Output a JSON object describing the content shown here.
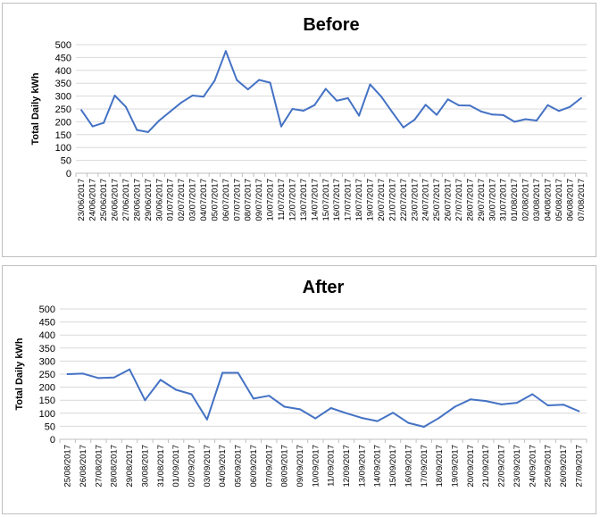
{
  "line_color": "#4472C4",
  "grid_color": "#d9d9d9",
  "chart_data": [
    {
      "type": "line",
      "title": "Before",
      "ylabel": "Total Daily kWh",
      "ylim": [
        0,
        500
      ],
      "yticks": [
        0,
        50,
        100,
        150,
        200,
        250,
        300,
        350,
        400,
        450,
        500
      ],
      "grid": true,
      "x": [
        "23/06/2017",
        "24/06/2017",
        "25/06/2017",
        "26/06/2017",
        "27/06/2017",
        "28/06/2017",
        "29/06/2017",
        "30/06/2017",
        "01/07/2017",
        "02/07/2017",
        "03/07/2017",
        "04/07/2017",
        "05/07/2017",
        "06/07/2017",
        "07/07/2017",
        "08/07/2017",
        "09/07/2017",
        "10/07/2017",
        "11/07/2017",
        "12/07/2017",
        "13/07/2017",
        "14/07/2017",
        "15/07/2017",
        "16/07/2017",
        "17/07/2017",
        "18/07/2017",
        "19/07/2017",
        "20/07/2017",
        "21/07/2017",
        "22/07/2017",
        "23/07/2017",
        "24/07/2017",
        "25/07/2017",
        "26/07/2017",
        "27/07/2017",
        "28/07/2017",
        "29/07/2017",
        "30/07/2017",
        "31/07/2017",
        "01/08/2017",
        "02/08/2017",
        "03/08/2017",
        "04/08/2017",
        "05/08/2017",
        "06/08/2017",
        "07/08/2017"
      ],
      "values": [
        245,
        182,
        196,
        302,
        258,
        168,
        160,
        205,
        240,
        275,
        302,
        298,
        360,
        475,
        362,
        326,
        363,
        352,
        182,
        250,
        243,
        265,
        328,
        282,
        292,
        224,
        345,
        298,
        237,
        178,
        208,
        266,
        227,
        287,
        264,
        263,
        240,
        228,
        226,
        200,
        210,
        205,
        265,
        242,
        258,
        292
      ]
    },
    {
      "type": "line",
      "title": "After",
      "ylabel": "Total Daily kWh",
      "ylim": [
        0,
        500
      ],
      "yticks": [
        0,
        50,
        100,
        150,
        200,
        250,
        300,
        350,
        400,
        450,
        500
      ],
      "grid": true,
      "x": [
        "25/08/2017",
        "26/08/2017",
        "27/08/2017",
        "28/08/2017",
        "29/08/2017",
        "30/08/2017",
        "31/08/2017",
        "01/09/2017",
        "02/09/2017",
        "03/09/2017",
        "04/09/2017",
        "05/09/2017",
        "06/09/2017",
        "07/09/2017",
        "08/09/2017",
        "09/09/2017",
        "10/09/2017",
        "11/09/2017",
        "12/09/2017",
        "13/09/2017",
        "14/09/2017",
        "15/09/2017",
        "16/09/2017",
        "17/09/2017",
        "18/09/2017",
        "19/09/2017",
        "20/09/2017",
        "21/09/2017",
        "22/09/2017",
        "23/09/2017",
        "24/09/2017",
        "25/09/2017",
        "26/09/2017",
        "27/09/2017"
      ],
      "values": [
        250,
        252,
        235,
        237,
        268,
        150,
        228,
        190,
        173,
        76,
        255,
        255,
        156,
        167,
        125,
        115,
        80,
        120,
        100,
        82,
        70,
        102,
        63,
        48,
        83,
        125,
        153,
        147,
        134,
        140,
        173,
        130,
        133,
        108
      ]
    }
  ]
}
